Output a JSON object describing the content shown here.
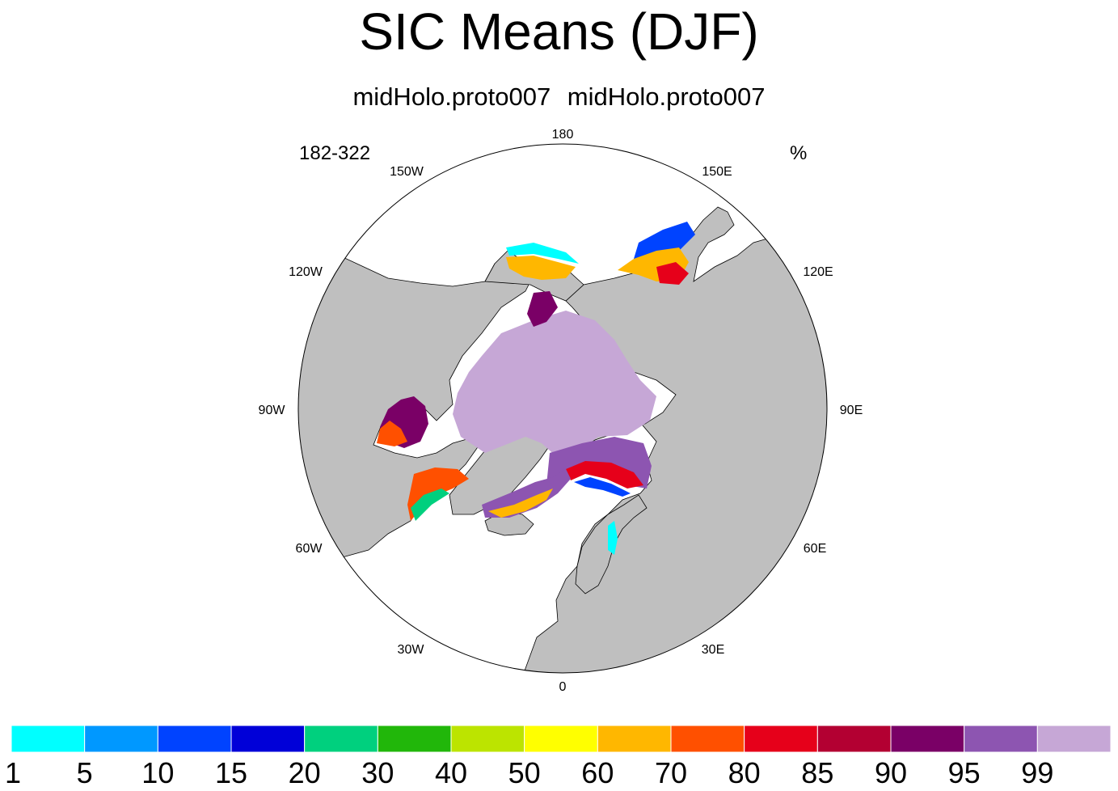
{
  "title": "SIC Means (DJF)",
  "subtitle": "midHolo.proto007  midHolo.proto007",
  "left_label": "182-322",
  "units_label": "%",
  "longitude_labels": [
    "180",
    "150E",
    "120E",
    "90E",
    "60E",
    "30E",
    "0",
    "30W",
    "60W",
    "90W",
    "120W",
    "150W"
  ],
  "colors": {
    "land": "#bfbfbf",
    "ocean": "#ffffff",
    "coast": "#000000"
  },
  "colorbar": {
    "labels": [
      "1",
      "5",
      "10",
      "15",
      "20",
      "30",
      "40",
      "50",
      "60",
      "70",
      "80",
      "85",
      "90",
      "95",
      "99"
    ],
    "colors": [
      "#00ffff",
      "#0098ff",
      "#0043ff",
      "#0000d8",
      "#00d07e",
      "#21b70a",
      "#bce400",
      "#ffff00",
      "#ffb700",
      "#ff5000",
      "#e6001a",
      "#b30032",
      "#7a0066",
      "#8d55b1",
      "#c6a7d6"
    ]
  }
}
